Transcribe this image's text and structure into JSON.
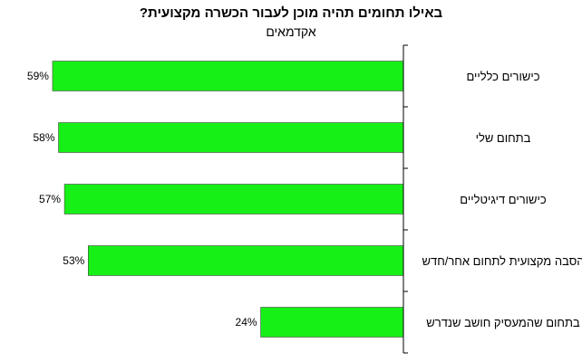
{
  "chart_data": {
    "type": "bar",
    "orientation": "horizontal",
    "title": "באילו תחומים תהיה מוכן לעבור הכשרה מקצועית?",
    "subtitle": "אקדמאים",
    "categories": [
      "כישורים כלליים",
      "בתחום שלי",
      "כישורים דיגיטליים",
      "הסבה מקצועית לתחום אחר/חדש",
      "בתחום שהמעסיק חושב שנדרש"
    ],
    "values": [
      59,
      58,
      57,
      53,
      24
    ],
    "value_labels": [
      "59%",
      "58%",
      "57%",
      "53%",
      "24%"
    ],
    "xlim": [
      0,
      60
    ],
    "bar_color": "#17f017",
    "grid": false,
    "legend": "none"
  }
}
